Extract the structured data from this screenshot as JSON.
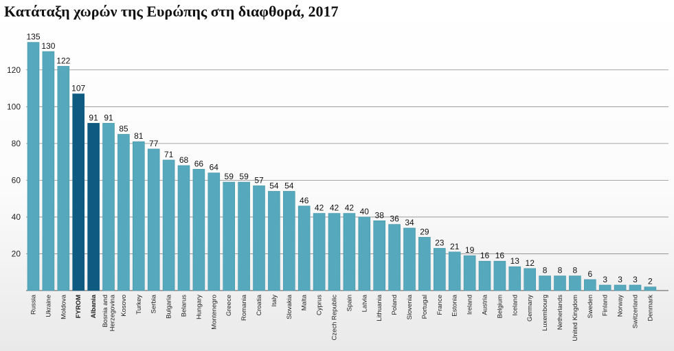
{
  "chart_data": {
    "type": "bar",
    "title": "Κατάταξη χωρών της Ευρώπης στη διαφθορά, 2017",
    "xlabel": "",
    "ylabel": "",
    "ylim": [
      0,
      140
    ],
    "yticks": [
      20,
      40,
      60,
      80,
      100,
      120
    ],
    "grid": true,
    "categories": [
      [
        "Russia"
      ],
      [
        "Ukraine"
      ],
      [
        "Moldova"
      ],
      [
        "FYROM"
      ],
      [
        "Albania"
      ],
      [
        "Bosnia and",
        "Herzegovina"
      ],
      [
        "Kosovo"
      ],
      [
        "Turkey"
      ],
      [
        "Serbia"
      ],
      [
        "Bulgaria"
      ],
      [
        "Belarus"
      ],
      [
        "Hungary"
      ],
      [
        "Montenegro"
      ],
      [
        "Greece"
      ],
      [
        "Romania"
      ],
      [
        "Croatia"
      ],
      [
        "Italy"
      ],
      [
        "Slovakia"
      ],
      [
        "Malta"
      ],
      [
        "Cyprus"
      ],
      [
        "Czech Republic"
      ],
      [
        "Spain"
      ],
      [
        "Latvia"
      ],
      [
        "Lithuania"
      ],
      [
        "Poland"
      ],
      [
        "Slovenia"
      ],
      [
        "Portugal"
      ],
      [
        "France"
      ],
      [
        "Estonia"
      ],
      [
        "Ireland"
      ],
      [
        "Austria"
      ],
      [
        "Belgium"
      ],
      [
        "Iceland"
      ],
      [
        "Germany"
      ],
      [
        "Luxembourg"
      ],
      [
        "Netherlands"
      ],
      [
        "United Kingdom"
      ],
      [
        "Sweden"
      ],
      [
        "Finland"
      ],
      [
        "Norway"
      ],
      [
        "Switzerland"
      ],
      [
        "Denmark"
      ]
    ],
    "values": [
      135,
      130,
      122,
      107,
      91,
      91,
      85,
      81,
      77,
      71,
      68,
      66,
      64,
      59,
      59,
      57,
      54,
      54,
      46,
      42,
      42,
      42,
      40,
      38,
      36,
      34,
      29,
      23,
      21,
      19,
      16,
      16,
      13,
      12,
      8,
      8,
      8,
      6,
      3,
      3,
      3,
      2
    ],
    "highlight": [
      "FYROM",
      "Albania"
    ],
    "colors": {
      "bar": "#56a9bd",
      "bar_edge": "#4596aa",
      "highlight": "#0f5a80",
      "grid": "#8a8a8a",
      "axis": "#555555"
    }
  }
}
